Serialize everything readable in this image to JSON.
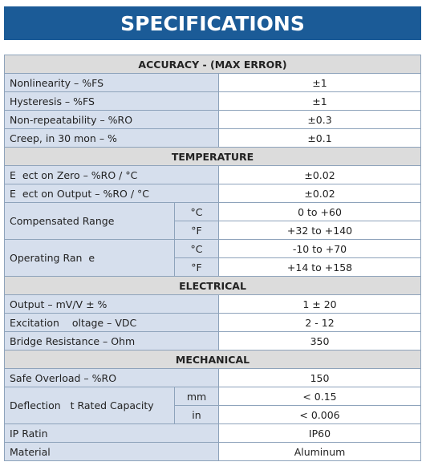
{
  "header": {
    "title": "SPECIFICATIONS"
  },
  "sections": [
    {
      "title": "ACCURACY - (MAX ERROR)",
      "rows": [
        {
          "label": "Nonlinearity – %FS",
          "value": "±1"
        },
        {
          "label": "Hysteresis – %FS",
          "value": "±1"
        },
        {
          "label": "Non-repeatability – %RO",
          "value": "±0.3"
        },
        {
          "label": "Creep, in 30 mon – %",
          "value": "±0.1"
        }
      ]
    },
    {
      "title": "TEMPERATURE",
      "rows": [
        {
          "label": "E  ect on Zero – %RO / °C",
          "value": "±0.02"
        },
        {
          "label": "E  ect on Output – %RO / °C",
          "value": "±0.02"
        },
        {
          "label": "Compensated Range",
          "sub": [
            {
              "unit": "°C",
              "value": "0 to +60"
            },
            {
              "unit": "°F",
              "value": "+32 to +140"
            }
          ]
        },
        {
          "label": "Operating Ran  e",
          "sub": [
            {
              "unit": "°C",
              "value": "-10 to +70"
            },
            {
              "unit": "°F",
              "value": "+14 to +158"
            }
          ]
        }
      ]
    },
    {
      "title": "ELECTRICAL",
      "rows": [
        {
          "label": "Output – mV/V ± %",
          "value": "1 ± 20"
        },
        {
          "label": "Excitation    oltage – VDC",
          "value": "2 - 12"
        },
        {
          "label": "Bridge Resistance – Ohm",
          "value": "350"
        }
      ]
    },
    {
      "title": "MECHANICAL",
      "rows": [
        {
          "label": "Safe Overload – %RO",
          "value": "150"
        },
        {
          "label": "Deflection   t Rated Capacity",
          "sub": [
            {
              "unit": "mm",
              "value": "< 0.15"
            },
            {
              "unit": "in",
              "value": "< 0.006"
            }
          ]
        },
        {
          "label": "IP Ratin",
          "value": "IP60"
        },
        {
          "label": "Material",
          "value": "Aluminum"
        }
      ]
    }
  ]
}
